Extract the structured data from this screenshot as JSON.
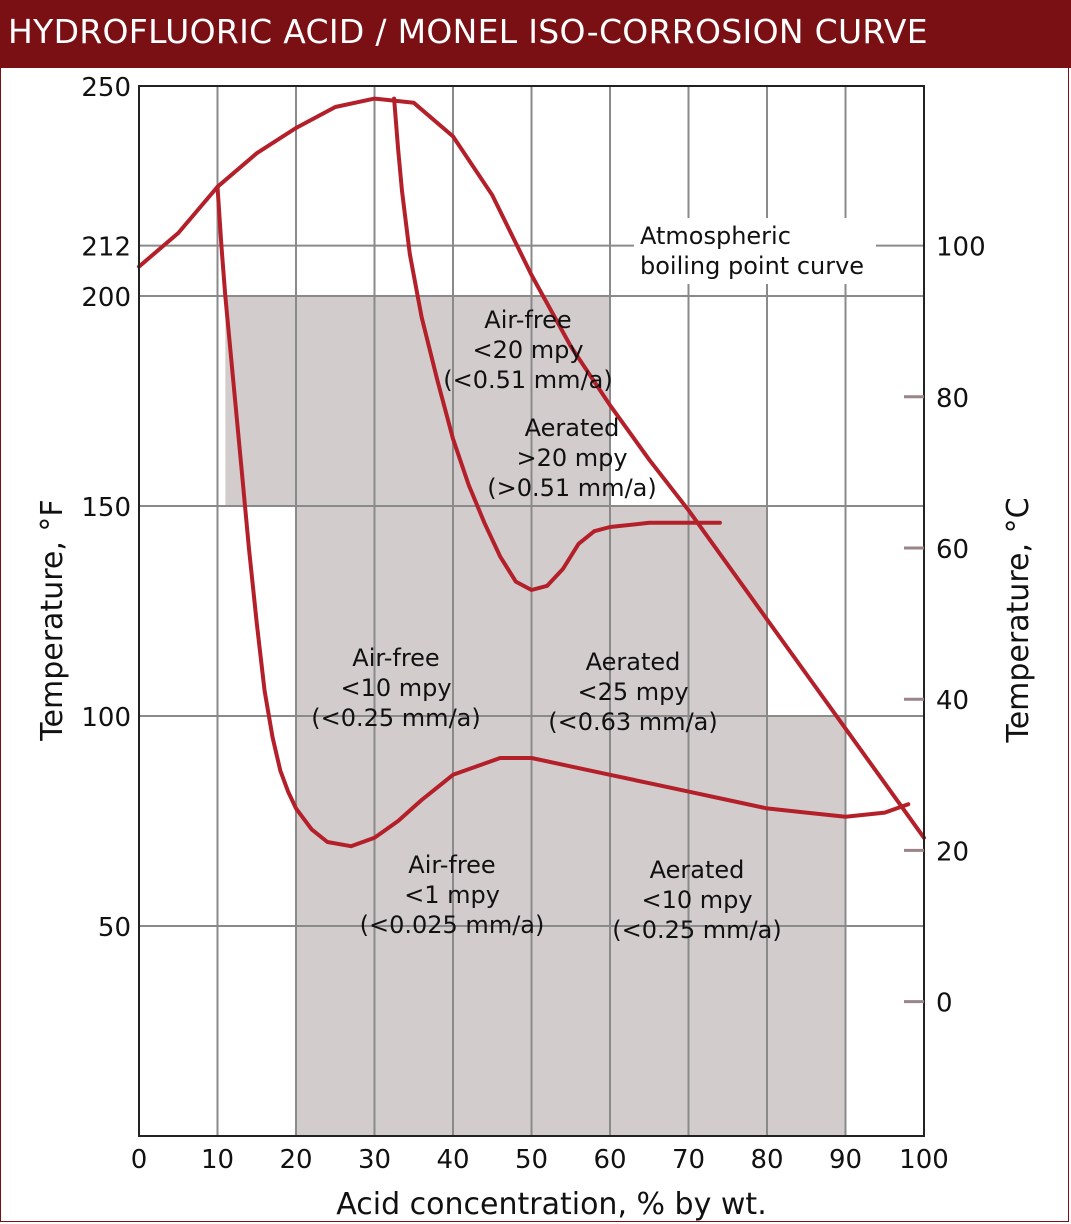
{
  "title": "HYDROFLUORIC ACID / MONEL ISO-CORROSION CURVE",
  "colors": {
    "title_bar": "#7a1014",
    "curve": "#b4202a",
    "region": "#d3cccd",
    "grid": "#8a8a8a"
  },
  "chart_data": {
    "type": "line",
    "xlabel": "Acid concentration, % by wt.",
    "ylabel": "Temperature, °F",
    "ylabel_right": "Temperature, °C",
    "xlim": [
      0,
      100
    ],
    "ylim": [
      0,
      250
    ],
    "x_ticks": [
      "0",
      "10",
      "20",
      "30",
      "40",
      "50",
      "60",
      "70",
      "80",
      "90",
      "100"
    ],
    "x_tick_values": [
      0,
      10,
      20,
      30,
      40,
      50,
      60,
      70,
      80,
      90,
      100
    ],
    "y_ticks": [
      {
        "label": "50",
        "value": 50
      },
      {
        "label": "100",
        "value": 100
      },
      {
        "label": "150",
        "value": 150
      },
      {
        "label": "200",
        "value": 200
      },
      {
        "label": "212",
        "value": 212
      },
      {
        "label": "250",
        "value": 250
      }
    ],
    "y2_ticks": [
      {
        "label": "0",
        "value": 32
      },
      {
        "label": "20",
        "value": 68
      },
      {
        "label": "40",
        "value": 104
      },
      {
        "label": "60",
        "value": 140
      },
      {
        "label": "80",
        "value": 176
      },
      {
        "label": "100",
        "value": 212
      }
    ],
    "shaded_regions": [
      {
        "x": [
          11,
          20
        ],
        "y": [
          150,
          200
        ]
      },
      {
        "x": [
          20,
          60
        ],
        "y": [
          0,
          200
        ]
      },
      {
        "x": [
          60,
          80
        ],
        "y": [
          0,
          150
        ]
      },
      {
        "x": [
          80,
          90
        ],
        "y": [
          0,
          100
        ]
      }
    ],
    "curves": [
      {
        "name": "Atmospheric boiling point curve",
        "points": [
          [
            0,
            207
          ],
          [
            5,
            215
          ],
          [
            10,
            226
          ],
          [
            15,
            234
          ],
          [
            20,
            240
          ],
          [
            25,
            245
          ],
          [
            30,
            247
          ],
          [
            35,
            246
          ],
          [
            40,
            238
          ],
          [
            45,
            224
          ],
          [
            50,
            205
          ],
          [
            55,
            188
          ],
          [
            60,
            174
          ],
          [
            65,
            161
          ],
          [
            70,
            149
          ],
          [
            75,
            136
          ],
          [
            80,
            123
          ],
          [
            85,
            110
          ],
          [
            90,
            97
          ],
          [
            95,
            84
          ],
          [
            100,
            71
          ]
        ]
      },
      {
        "name": "boundary-10",
        "points": [
          [
            10,
            226
          ],
          [
            10.5,
            212
          ],
          [
            11,
            200
          ],
          [
            12,
            180
          ],
          [
            13,
            160
          ],
          [
            14,
            140
          ],
          [
            15,
            122
          ],
          [
            16,
            106
          ],
          [
            17,
            95
          ],
          [
            18,
            87
          ],
          [
            19,
            82
          ],
          [
            20,
            78
          ],
          [
            22,
            73
          ],
          [
            24,
            70
          ],
          [
            27,
            69
          ],
          [
            30,
            71
          ],
          [
            33,
            75
          ],
          [
            36,
            80
          ],
          [
            38,
            83
          ],
          [
            40,
            86
          ],
          [
            43,
            88
          ],
          [
            46,
            90
          ],
          [
            50,
            90
          ],
          [
            55,
            88
          ],
          [
            60,
            86
          ],
          [
            65,
            84
          ],
          [
            70,
            82
          ],
          [
            75,
            80
          ],
          [
            80,
            78
          ],
          [
            85,
            77
          ],
          [
            90,
            76
          ],
          [
            95,
            77
          ],
          [
            98,
            79
          ]
        ]
      },
      {
        "name": "boundary-30",
        "points": [
          [
            32.5,
            247
          ],
          [
            33,
            235
          ],
          [
            33.5,
            225
          ],
          [
            34.5,
            210
          ],
          [
            36,
            195
          ],
          [
            38,
            180
          ],
          [
            40,
            166
          ],
          [
            42,
            155
          ],
          [
            44,
            146
          ],
          [
            46,
            138
          ],
          [
            48,
            132
          ],
          [
            50,
            130
          ],
          [
            52,
            131
          ],
          [
            54,
            135
          ],
          [
            56,
            141
          ],
          [
            58,
            144
          ],
          [
            60,
            145
          ],
          [
            65,
            146
          ],
          [
            70,
            146
          ],
          [
            74,
            146
          ]
        ]
      }
    ],
    "annotations": [
      {
        "lines": [
          "Atmospheric",
          "boiling point curve"
        ]
      },
      {
        "lines": [
          "Air-free",
          "<20 mpy",
          "(<0.51 mm/a)"
        ]
      },
      {
        "lines": [
          "Aerated",
          ">20 mpy",
          "(>0.51 mm/a)"
        ]
      },
      {
        "lines": [
          "Air-free",
          "<10 mpy",
          "(<0.25 mm/a)"
        ]
      },
      {
        "lines": [
          "Aerated",
          "<25 mpy",
          "(<0.63 mm/a)"
        ]
      },
      {
        "lines": [
          "Air-free",
          "<1 mpy",
          "(<0.025 mm/a)"
        ]
      },
      {
        "lines": [
          "Aerated",
          "<10 mpy",
          "(<0.25 mm/a)"
        ]
      }
    ]
  }
}
